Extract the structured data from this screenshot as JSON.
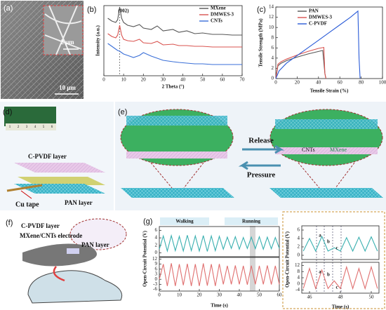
{
  "panels": {
    "a": {
      "label": "(a)",
      "scale_bars": [
        "2 μm",
        "10 μm"
      ]
    },
    "b": {
      "label": "(b)"
    },
    "c": {
      "label": "(c)"
    },
    "d": {
      "label": "(d)",
      "ruler": [
        "1",
        "2",
        "3",
        "4",
        "5",
        "6"
      ],
      "texts": [
        "C-PVDF layer",
        "Cu tape",
        "PAN layer"
      ]
    },
    "e": {
      "label": "(e)",
      "texts": [
        "Release",
        "Pressure",
        "CNTs",
        "MXene"
      ]
    },
    "f": {
      "label": "(f)",
      "texts": [
        "C-PVDF layer",
        "MXene/CNTs electrode",
        "PAN layer"
      ]
    },
    "g": {
      "label": "(g)"
    }
  },
  "chart_data": [
    {
      "type": "line",
      "xlabel": "2 Theta (°)",
      "ylabel": "Intensity (a.u.)",
      "annotations": [
        "(002)"
      ],
      "xlim": [
        0,
        70
      ],
      "xticks": [
        0,
        10,
        20,
        30,
        40,
        50,
        60,
        70
      ],
      "ylim": [
        0,
        10
      ],
      "x": [
        2,
        4,
        6,
        7,
        8,
        9,
        10,
        12,
        15,
        18,
        20,
        24,
        27,
        30,
        35,
        38,
        42,
        46,
        50,
        55,
        60,
        65,
        70
      ],
      "series": [
        {
          "name": "MXene",
          "color": "#555555",
          "values": [
            8.2,
            7.8,
            7.6,
            8,
            9.8,
            8.2,
            7.6,
            7.2,
            7.0,
            7.3,
            6.8,
            6.6,
            7.1,
            6.4,
            6.6,
            6.2,
            6.4,
            6.0,
            6.1,
            5.9,
            5.9,
            5.8,
            5.8
          ]
        },
        {
          "name": "DMWES-3",
          "color": "#d9534f",
          "values": [
            6.0,
            5.6,
            5.4,
            5.8,
            7.2,
            5.8,
            5.2,
            5.0,
            4.9,
            5.2,
            4.7,
            4.6,
            4.9,
            4.4,
            4.5,
            4.3,
            4.3,
            4.2,
            4.2,
            4.1,
            4.1,
            4.1,
            4.1
          ]
        },
        {
          "name": "CNTs",
          "color": "#3a6fd8",
          "values": [
            4.6,
            4.2,
            3.8,
            3.6,
            3.5,
            3.3,
            3.1,
            2.9,
            2.6,
            2.9,
            3.3,
            2.8,
            2.5,
            2.2,
            2.0,
            1.9,
            1.8,
            1.7,
            1.7,
            1.6,
            1.6,
            1.6,
            1.6
          ]
        }
      ]
    },
    {
      "type": "line",
      "xlabel": "Tensile Strain (%)",
      "ylabel": "Tensile Strength (MPa)",
      "xlim": [
        0,
        100
      ],
      "xticks": [
        0,
        20,
        40,
        60,
        80,
        100
      ],
      "ylim": [
        0,
        14
      ],
      "yticks": [
        0,
        2,
        4,
        6,
        8,
        10,
        12,
        14
      ],
      "series": [
        {
          "name": "PAN",
          "color": "#555555",
          "x": [
            0,
            2,
            5,
            10,
            20,
            30,
            40,
            44,
            46,
            47
          ],
          "values": [
            0,
            2.5,
            3,
            3.5,
            4.2,
            4.8,
            5.3,
            5.5,
            1,
            0
          ]
        },
        {
          "name": "DMWES-3",
          "color": "#d9534f",
          "x": [
            0,
            2,
            5,
            10,
            20,
            30,
            40,
            45,
            46,
            47
          ],
          "values": [
            0,
            2.8,
            3.3,
            3.8,
            4.6,
            5.3,
            5.9,
            6.1,
            1,
            0
          ]
        },
        {
          "name": "C-PVDF",
          "color": "#2a5bd7",
          "x": [
            0,
            3,
            10,
            20,
            30,
            40,
            50,
            60,
            70,
            77,
            78,
            79
          ],
          "values": [
            0,
            1.5,
            3,
            4.5,
            6,
            7.5,
            9,
            10.5,
            12,
            13.2,
            4,
            0
          ]
        }
      ]
    },
    {
      "type": "line",
      "annotations": [
        "Walking",
        "Running"
      ],
      "xlim": [
        0,
        60
      ],
      "ylim": [
        -1,
        7
      ],
      "yticks": [
        0,
        2,
        4,
        6
      ],
      "x": [
        0,
        2,
        4,
        6,
        8,
        10,
        12,
        14,
        16,
        18,
        20,
        22,
        24,
        26,
        28,
        30,
        32,
        34,
        36,
        38,
        40,
        42,
        44,
        46,
        48,
        50,
        52,
        54,
        56,
        58,
        60
      ],
      "series": [
        {
          "color": "#3ab0b0",
          "values": [
            1,
            4.5,
            0.5,
            4.6,
            0.6,
            4.4,
            0.5,
            4.7,
            0.6,
            4.5,
            0.5,
            4.6,
            0.4,
            4.5,
            0.6,
            4.4,
            1,
            4.2,
            1.2,
            4.3,
            1,
            4.1,
            1.2,
            4.2,
            1.1,
            4.3,
            1,
            4.2,
            1.1,
            4.1,
            1.2
          ]
        }
      ]
    },
    {
      "type": "line",
      "xlabel": "Time (s)",
      "ylabel": "Open-Circuit Potential (V)",
      "xlim": [
        0,
        60
      ],
      "xticks": [
        0,
        10,
        20,
        30,
        40,
        50,
        60
      ],
      "ylim": [
        -7,
        13
      ],
      "yticks": [
        -6,
        -3,
        0,
        3,
        6,
        9,
        12
      ],
      "x": [
        0,
        2,
        4,
        6,
        8,
        10,
        12,
        14,
        16,
        18,
        20,
        22,
        24,
        26,
        28,
        30,
        32,
        34,
        36,
        38,
        40,
        42,
        44,
        46,
        48,
        50,
        52,
        54,
        56,
        58,
        60
      ],
      "series": [
        {
          "color": "#e07070",
          "values": [
            0,
            9,
            -4,
            9.5,
            -4,
            9,
            -3.5,
            9.2,
            -4,
            9,
            -4,
            9.4,
            -3.8,
            9,
            -4,
            9.1,
            -3,
            8,
            -3,
            8.2,
            -3,
            8,
            -3.2,
            8.1,
            -3,
            8,
            -3,
            8.2,
            -3.1,
            8,
            -3
          ]
        }
      ]
    },
    {
      "type": "line",
      "annotations": [
        "a",
        "b",
        "c"
      ],
      "xlim": [
        45.5,
        50.5
      ],
      "ylim": [
        -1,
        7
      ],
      "yticks": [
        0,
        2,
        4,
        6
      ],
      "x": [
        45.6,
        46,
        46.4,
        46.8,
        47.2,
        47.6,
        48,
        48.4,
        48.8,
        49.2,
        49.6,
        50,
        50.4
      ],
      "series": [
        {
          "color": "#3ab0b0",
          "values": [
            1,
            4,
            1,
            4.5,
            1,
            1.8,
            1,
            4.2,
            1,
            4.3,
            1,
            4.4,
            1
          ]
        }
      ]
    },
    {
      "type": "line",
      "xlabel": "Time (s)",
      "ylabel": "Open-Circuit Potential (V)",
      "annotations": [
        "a",
        "b",
        "c"
      ],
      "xlim": [
        45.5,
        50.5
      ],
      "xticks": [
        46,
        48,
        50
      ],
      "ylim": [
        -6,
        14
      ],
      "yticks": [
        -4,
        0,
        4,
        8,
        12
      ],
      "x": [
        45.6,
        46,
        46.4,
        46.8,
        47.2,
        47.6,
        48,
        48.4,
        48.8,
        49.2,
        49.6,
        50,
        50.4
      ],
      "series": [
        {
          "color": "#e07070",
          "values": [
            -3,
            10,
            -3,
            9,
            -3,
            2,
            -3,
            11,
            -3,
            10,
            -3,
            11,
            -3
          ]
        }
      ]
    }
  ]
}
